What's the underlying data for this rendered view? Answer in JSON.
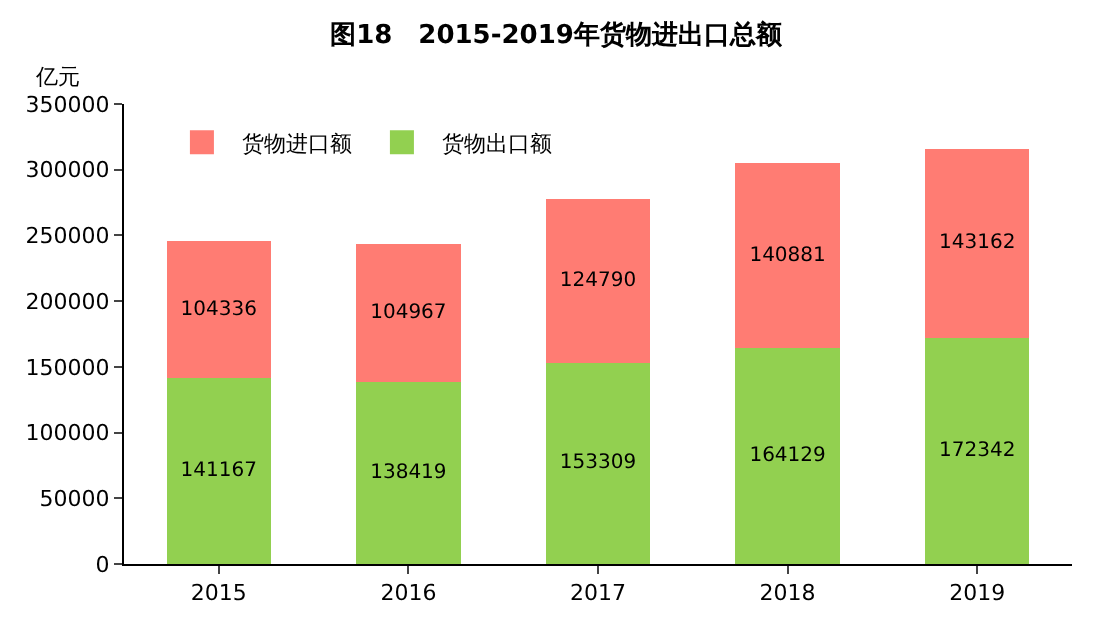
{
  "chart_data": {
    "type": "bar",
    "title": "图18　2015-2019年货物进出口总额",
    "ylabel": "亿元",
    "categories": [
      "2015",
      "2016",
      "2017",
      "2018",
      "2019"
    ],
    "stacked": true,
    "series": [
      {
        "name": "货物出口额",
        "color": "#92d050",
        "values": [
          141167,
          138419,
          153309,
          164129,
          172342
        ]
      },
      {
        "name": "货物进口额",
        "color": "#ff7c73",
        "values": [
          104336,
          104967,
          124790,
          140881,
          143162
        ]
      }
    ],
    "ylim": [
      0,
      350000
    ],
    "yticks": [
      0,
      50000,
      100000,
      150000,
      200000,
      250000,
      300000,
      350000
    ],
    "grid": false,
    "legend": "top left",
    "data_labels": true
  }
}
